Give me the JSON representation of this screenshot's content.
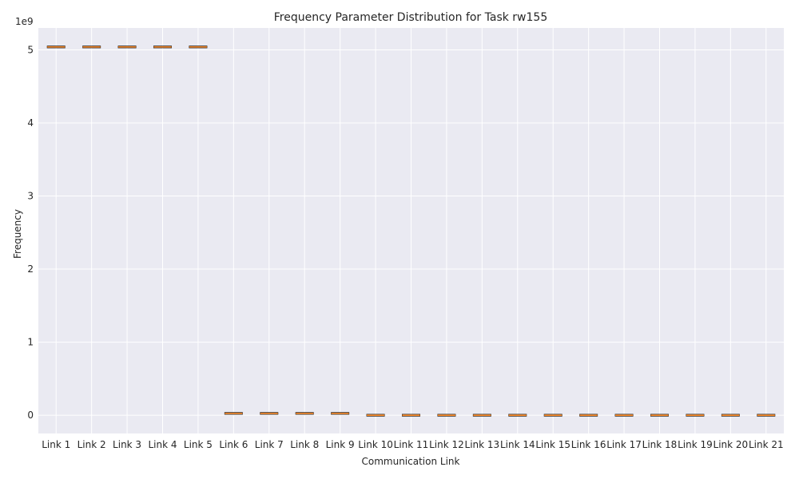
{
  "chart_data": {
    "type": "box",
    "title": "Frequency Parameter Distribution for Task rw155",
    "xlabel": "Communication Link",
    "ylabel": "Frequency",
    "y_exponent_label": "1e9",
    "y_scale_factor": 1000000000,
    "ylim": [
      -250000000,
      5300000000
    ],
    "yticks": [
      0,
      1000000000,
      2000000000,
      3000000000,
      4000000000,
      5000000000
    ],
    "ytick_labels": [
      "0",
      "1",
      "2",
      "3",
      "4",
      "5"
    ],
    "grid": true,
    "categories": [
      "Link 1",
      "Link 2",
      "Link 3",
      "Link 4",
      "Link 5",
      "Link 6",
      "Link 7",
      "Link 8",
      "Link 9",
      "Link 10",
      "Link 11",
      "Link 12",
      "Link 13",
      "Link 14",
      "Link 15",
      "Link 16",
      "Link 17",
      "Link 18",
      "Link 19",
      "Link 20",
      "Link 21"
    ],
    "values": [
      5040000000,
      5040000000,
      5040000000,
      5040000000,
      5040000000,
      25000000,
      25000000,
      25000000,
      25000000,
      0,
      0,
      0,
      0,
      0,
      0,
      0,
      0,
      0,
      0,
      0,
      0
    ],
    "colors": {
      "background": "#eaeaf2",
      "grid": "#ffffff",
      "box_edge": "#262626",
      "median": "#ff7f0e"
    }
  }
}
